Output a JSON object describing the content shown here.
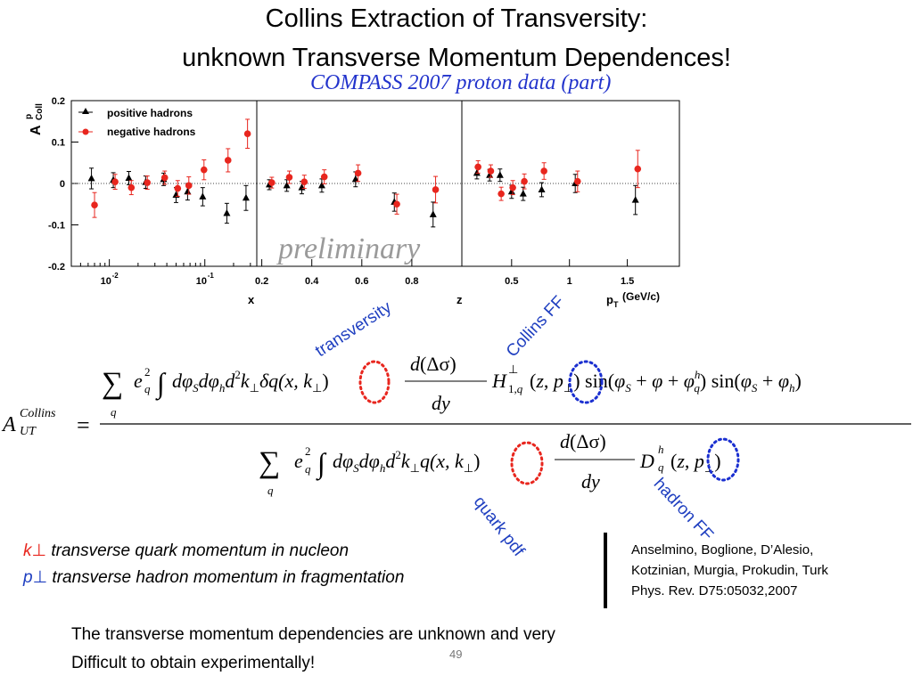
{
  "slide": {
    "title_line1": "Collins Extraction of Transversity:",
    "title_line2": "unknown Transverse Momentum Dependences!",
    "page_number": "49"
  },
  "chart_data": {
    "type": "scatter",
    "title": "COMPASS 2007 proton data (part)",
    "watermark": "preliminary",
    "ylabel": "A",
    "ylabel_sup": "p",
    "ylabel_sub": "Coll",
    "ylim": [
      -0.2,
      0.2
    ],
    "yticks": [
      "0.2",
      "0.1",
      "0",
      "-0.1",
      "-0.2"
    ],
    "grid": false,
    "legend_position": "top-left",
    "series": [
      {
        "name": "positive hadrons",
        "marker": "triangle",
        "color": "#000000"
      },
      {
        "name": "negative hadrons",
        "marker": "circle",
        "color": "#e8261e"
      }
    ],
    "panels": [
      {
        "xlabel": "x",
        "xscale": "log",
        "xlim": [
          0.004,
          0.35
        ],
        "xticklabels": [
          "10",
          "10"
        ],
        "xtick_exponents": [
          "-2",
          "-1"
        ],
        "positive": [
          {
            "x": 0.0065,
            "y": 0.012,
            "err": 0.025
          },
          {
            "x": 0.011,
            "y": 0.008,
            "err": 0.018
          },
          {
            "x": 0.016,
            "y": 0.013,
            "err": 0.016
          },
          {
            "x": 0.024,
            "y": 0.003,
            "err": 0.015
          },
          {
            "x": 0.037,
            "y": 0.01,
            "err": 0.015
          },
          {
            "x": 0.05,
            "y": -0.028,
            "err": 0.018
          },
          {
            "x": 0.066,
            "y": -0.02,
            "err": 0.02
          },
          {
            "x": 0.095,
            "y": -0.032,
            "err": 0.022
          },
          {
            "x": 0.17,
            "y": -0.072,
            "err": 0.024
          },
          {
            "x": 0.27,
            "y": -0.035,
            "err": 0.03
          }
        ],
        "negative": [
          {
            "x": 0.007,
            "y": -0.052,
            "err": 0.03
          },
          {
            "x": 0.0115,
            "y": 0.004,
            "err": 0.018
          },
          {
            "x": 0.017,
            "y": -0.01,
            "err": 0.017
          },
          {
            "x": 0.025,
            "y": 0.002,
            "err": 0.016
          },
          {
            "x": 0.038,
            "y": 0.014,
            "err": 0.016
          },
          {
            "x": 0.052,
            "y": -0.012,
            "err": 0.019
          },
          {
            "x": 0.068,
            "y": -0.005,
            "err": 0.021
          },
          {
            "x": 0.098,
            "y": 0.033,
            "err": 0.024
          },
          {
            "x": 0.175,
            "y": 0.056,
            "err": 0.028
          },
          {
            "x": 0.28,
            "y": 0.12,
            "err": 0.035
          }
        ]
      },
      {
        "xlabel": "z",
        "xscale": "linear",
        "xlim": [
          0.18,
          1.0
        ],
        "xticklabels": [
          "0.2",
          "0.4",
          "0.6",
          "0.8"
        ],
        "xticks": [
          0.2,
          0.4,
          0.6,
          0.8
        ],
        "positive": [
          {
            "x": 0.23,
            "y": -0.003,
            "err": 0.012
          },
          {
            "x": 0.3,
            "y": -0.005,
            "err": 0.014
          },
          {
            "x": 0.36,
            "y": -0.01,
            "err": 0.015
          },
          {
            "x": 0.44,
            "y": -0.005,
            "err": 0.016
          },
          {
            "x": 0.575,
            "y": 0.01,
            "err": 0.018
          },
          {
            "x": 0.73,
            "y": -0.045,
            "err": 0.022
          },
          {
            "x": 0.885,
            "y": -0.075,
            "err": 0.03
          }
        ],
        "negative": [
          {
            "x": 0.24,
            "y": 0.002,
            "err": 0.013
          },
          {
            "x": 0.31,
            "y": 0.015,
            "err": 0.015
          },
          {
            "x": 0.37,
            "y": 0.004,
            "err": 0.016
          },
          {
            "x": 0.45,
            "y": 0.016,
            "err": 0.017
          },
          {
            "x": 0.585,
            "y": 0.025,
            "err": 0.02
          },
          {
            "x": 0.74,
            "y": -0.05,
            "err": 0.024
          },
          {
            "x": 0.895,
            "y": -0.015,
            "err": 0.032
          }
        ]
      },
      {
        "xlabel": "p",
        "xlabel_sub": "T",
        "xlabel_unit": "(GeV/c)",
        "xscale": "linear",
        "xlim": [
          0.07,
          1.95
        ],
        "xticklabels": [
          "0.5",
          "1",
          "1.5"
        ],
        "xticks": [
          0.5,
          1.0,
          1.5
        ],
        "positive": [
          {
            "x": 0.2,
            "y": 0.025,
            "err": 0.014
          },
          {
            "x": 0.31,
            "y": 0.02,
            "err": 0.014
          },
          {
            "x": 0.4,
            "y": 0.02,
            "err": 0.015
          },
          {
            "x": 0.5,
            "y": -0.02,
            "err": 0.016
          },
          {
            "x": 0.6,
            "y": -0.025,
            "err": 0.016
          },
          {
            "x": 0.76,
            "y": -0.015,
            "err": 0.017
          },
          {
            "x": 1.05,
            "y": 0.0,
            "err": 0.022
          },
          {
            "x": 1.57,
            "y": -0.04,
            "err": 0.035
          }
        ],
        "negative": [
          {
            "x": 0.21,
            "y": 0.04,
            "err": 0.015
          },
          {
            "x": 0.32,
            "y": 0.03,
            "err": 0.015
          },
          {
            "x": 0.41,
            "y": -0.025,
            "err": 0.016
          },
          {
            "x": 0.51,
            "y": -0.01,
            "err": 0.017
          },
          {
            "x": 0.61,
            "y": 0.005,
            "err": 0.018
          },
          {
            "x": 0.78,
            "y": 0.03,
            "err": 0.02
          },
          {
            "x": 1.07,
            "y": 0.005,
            "err": 0.025
          },
          {
            "x": 1.59,
            "y": 0.035,
            "err": 0.045
          }
        ]
      }
    ]
  },
  "annotations": {
    "transversity": "transversity",
    "collins_ff": "Collins FF",
    "quark_pdf": "quark pdf",
    "hadron_ff": "hadron FF"
  },
  "equation": {
    "lhs": "A",
    "lhs_sup": "Collins",
    "lhs_sub": "UT",
    "equals": "="
  },
  "notes": {
    "k_symbol": "k",
    "k_text": "transverse quark momentum in nucleon",
    "p_symbol": "p",
    "p_text": "transverse hadron momentum in fragmentation",
    "perp": "⊥"
  },
  "reference": {
    "line1": "Anselmino, Boglione, D’Alesio,",
    "line2": "Kotzinian, Murgia, Prokudin, Turk",
    "line3": "Phys. Rev. D75:05032,2007"
  },
  "conclusion": {
    "line1": "The transverse momentum dependencies are unknown and very",
    "line2": "Difficult to obtain experimentally!"
  },
  "colors": {
    "positive": "#000000",
    "negative": "#e8261e",
    "accent_blue": "#1f3fc0",
    "red_circle": "#e8261e",
    "blue_circle": "#1a2fd0"
  }
}
